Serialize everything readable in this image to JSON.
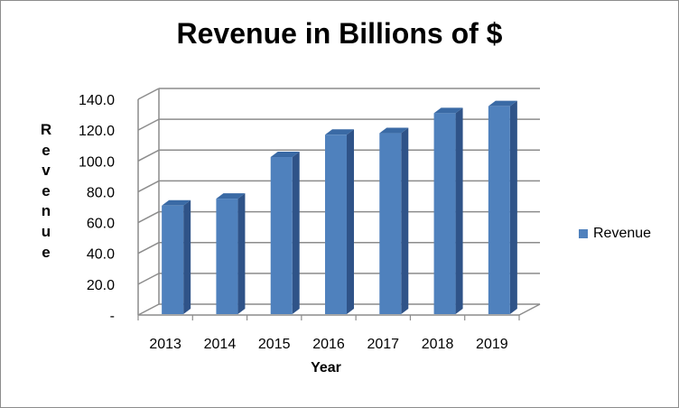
{
  "chart_data": {
    "type": "bar",
    "title": "Revenue in Billions of $",
    "xlabel": "Year",
    "ylabel": "Revenue",
    "categories": [
      "2013",
      "2014",
      "2015",
      "2016",
      "2017",
      "2018",
      "2019"
    ],
    "series": [
      {
        "name": "Revenue",
        "values": [
          71.0,
          75.5,
          102.5,
          117.0,
          118.0,
          131.0,
          135.5
        ]
      }
    ],
    "ylim": [
      0,
      140
    ],
    "ytick_labels": [
      "-",
      "20.0",
      "40.0",
      "60.0",
      "80.0",
      "100.0",
      "120.0",
      "140.0"
    ],
    "grid": true,
    "legend_position": "right",
    "colors": {
      "bar_front": "#4f81bd",
      "bar_side": "#2f5388",
      "bar_top": "#3a6aa5",
      "grid": "#8c8c8c"
    }
  }
}
